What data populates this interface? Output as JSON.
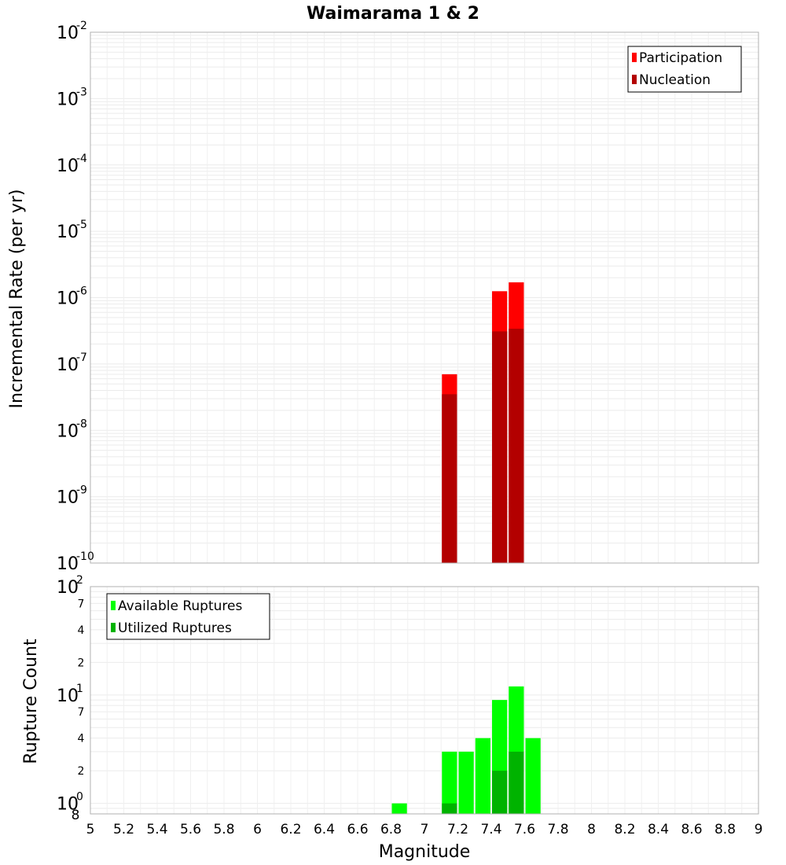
{
  "chart_data": [
    {
      "type": "bar",
      "title": "Waimarama 1 & 2",
      "xlabel": "",
      "ylabel": "Incremental Rate (per yr)",
      "yscale": "log",
      "ylim_exp": [
        -10,
        -2
      ],
      "xlim": [
        5,
        9
      ],
      "bin_width": 0.1,
      "legend_position": "top-right",
      "y_tick_labels": [
        {
          "exp": -10,
          "base": "10",
          "sup": "-10"
        },
        {
          "exp": -9,
          "base": "10",
          "sup": "-9"
        },
        {
          "exp": -8,
          "base": "10",
          "sup": "-8"
        },
        {
          "exp": -7,
          "base": "10",
          "sup": "-7"
        },
        {
          "exp": -6,
          "base": "10",
          "sup": "-6"
        },
        {
          "exp": -5,
          "base": "10",
          "sup": "-5"
        },
        {
          "exp": -4,
          "base": "10",
          "sup": "-4"
        },
        {
          "exp": -3,
          "base": "10",
          "sup": "-3"
        },
        {
          "exp": -2,
          "base": "10",
          "sup": "-2"
        }
      ],
      "series": [
        {
          "name": "Participation",
          "color": "#ff0000",
          "points": [
            {
              "x": 7.15,
              "y": 7e-08
            },
            {
              "x": 7.45,
              "y": 1.25e-06
            },
            {
              "x": 7.55,
              "y": 1.7e-06
            }
          ]
        },
        {
          "name": "Nucleation",
          "color": "#b30000",
          "points": [
            {
              "x": 7.15,
              "y": 3.5e-08
            },
            {
              "x": 7.45,
              "y": 3.1e-07
            },
            {
              "x": 7.55,
              "y": 3.4e-07
            }
          ]
        }
      ]
    },
    {
      "type": "bar",
      "title": "",
      "xlabel": "Magnitude",
      "ylabel": "Rupture Count",
      "yscale": "log",
      "ylim": [
        0.8,
        100
      ],
      "xlim": [
        5,
        9
      ],
      "bin_width": 0.1,
      "legend_position": "top-left",
      "x_ticks": [
        "5",
        "5.2",
        "5.4",
        "5.6",
        "5.8",
        "6",
        "6.2",
        "6.4",
        "6.6",
        "6.8",
        "7",
        "7.2",
        "7.4",
        "7.6",
        "7.8",
        "8",
        "8.2",
        "8.4",
        "8.6",
        "8.8",
        "9"
      ],
      "y_major_labels": [
        {
          "value": 1,
          "base": "10",
          "sup": "0"
        },
        {
          "value": 10,
          "base": "10",
          "sup": "1"
        },
        {
          "value": 100,
          "base": "10",
          "sup": "2"
        }
      ],
      "y_minor_labels": [
        {
          "value": 0.8,
          "label": "8"
        },
        {
          "value": 2,
          "label": "2"
        },
        {
          "value": 4,
          "label": "4"
        },
        {
          "value": 7,
          "label": "7"
        },
        {
          "value": 20,
          "label": "2"
        },
        {
          "value": 40,
          "label": "4"
        },
        {
          "value": 70,
          "label": "7"
        }
      ],
      "series": [
        {
          "name": "Available Ruptures",
          "color": "#00ff00",
          "points": [
            {
              "x": 6.85,
              "y": 1
            },
            {
              "x": 7.15,
              "y": 3
            },
            {
              "x": 7.25,
              "y": 3
            },
            {
              "x": 7.35,
              "y": 4
            },
            {
              "x": 7.45,
              "y": 9
            },
            {
              "x": 7.55,
              "y": 12
            },
            {
              "x": 7.65,
              "y": 4
            }
          ]
        },
        {
          "name": "Utilized Ruptures",
          "color": "#00b300",
          "points": [
            {
              "x": 7.15,
              "y": 1
            },
            {
              "x": 7.45,
              "y": 2
            },
            {
              "x": 7.55,
              "y": 3
            }
          ]
        }
      ]
    }
  ]
}
